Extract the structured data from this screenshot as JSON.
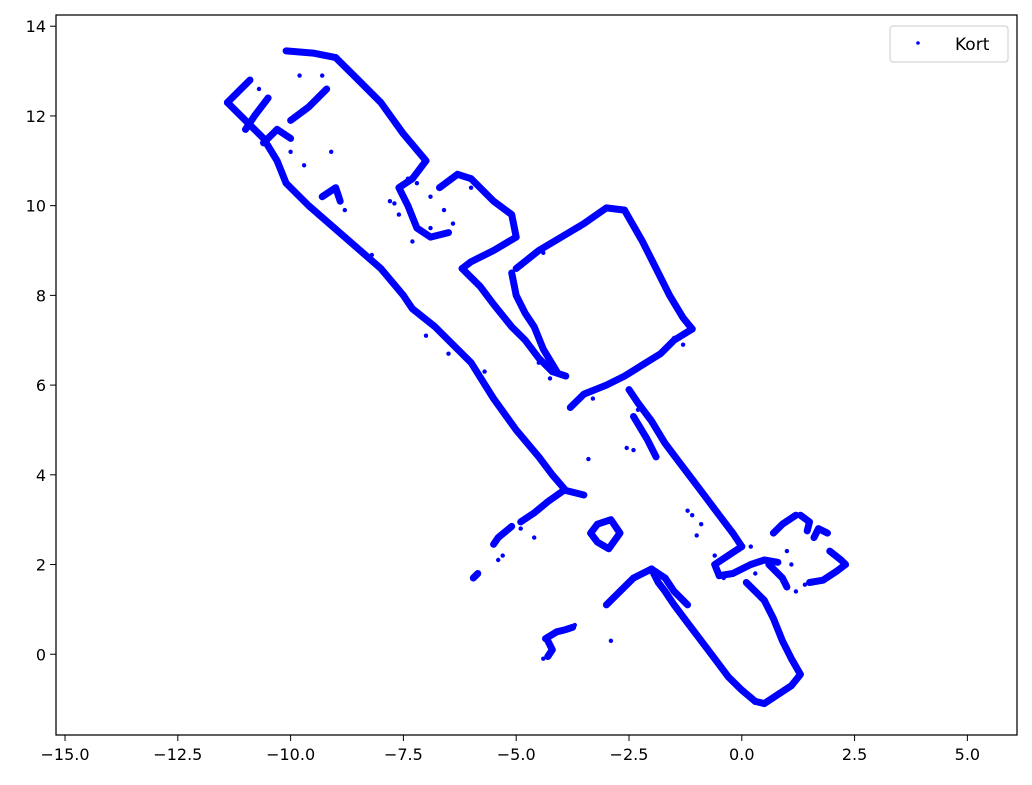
{
  "chart_data": {
    "type": "scatter",
    "title": "",
    "xlabel": "",
    "ylabel": "",
    "xlim": [
      -15.2,
      6.1
    ],
    "ylim": [
      -1.8,
      14.25
    ],
    "xticks": [
      -15.0,
      -12.5,
      -10.0,
      -7.5,
      -5.0,
      -2.5,
      0.0,
      2.5,
      5.0
    ],
    "xtick_labels": [
      "−15.0",
      "−12.5",
      "−10.0",
      "−7.5",
      "−5.0",
      "−2.5",
      "0.0",
      "2.5",
      "5.0"
    ],
    "yticks": [
      0,
      2,
      4,
      6,
      8,
      10,
      12,
      14
    ],
    "ytick_labels": [
      "0",
      "2",
      "4",
      "6",
      "8",
      "10",
      "12",
      "14"
    ],
    "grid": false,
    "legend": {
      "position": "top-right",
      "entries": [
        "Kort"
      ]
    },
    "series": [
      {
        "name": "Kort",
        "color": "#0000ff",
        "marker": "point",
        "polylines": [
          [
            [
              -11.4,
              12.3
            ],
            [
              -10.9,
              12.8
            ]
          ],
          [
            [
              -11.4,
              12.3
            ],
            [
              -10.6,
              11.5
            ],
            [
              -10.3,
              11.0
            ],
            [
              -10.1,
              10.5
            ],
            [
              -9.6,
              10.0
            ],
            [
              -8.8,
              9.3
            ],
            [
              -8.0,
              8.6
            ],
            [
              -7.5,
              8.0
            ],
            [
              -7.3,
              7.7
            ],
            [
              -6.8,
              7.3
            ],
            [
              -6.0,
              6.5
            ],
            [
              -5.5,
              5.7
            ],
            [
              -5.0,
              5.0
            ],
            [
              -4.5,
              4.4
            ],
            [
              -4.2,
              4.0
            ],
            [
              -3.9,
              3.65
            ],
            [
              -3.5,
              3.55
            ]
          ],
          [
            [
              -10.1,
              13.45
            ],
            [
              -9.5,
              13.4
            ],
            [
              -9.0,
              13.3
            ]
          ],
          [
            [
              -9.0,
              13.3
            ],
            [
              -8.5,
              12.8
            ],
            [
              -8.0,
              12.3
            ],
            [
              -7.5,
              11.6
            ],
            [
              -7.0,
              11.0
            ],
            [
              -7.3,
              10.6
            ],
            [
              -7.6,
              10.4
            ],
            [
              -7.4,
              10.0
            ],
            [
              -7.2,
              9.5
            ],
            [
              -6.9,
              9.3
            ],
            [
              -6.5,
              9.4
            ]
          ],
          [
            [
              -9.2,
              12.6
            ],
            [
              -9.6,
              12.2
            ],
            [
              -10.0,
              11.9
            ]
          ],
          [
            [
              -10.5,
              12.4
            ],
            [
              -10.8,
              12.0
            ],
            [
              -11.0,
              11.7
            ]
          ],
          [
            [
              -10.6,
              11.4
            ],
            [
              -10.3,
              11.7
            ],
            [
              -10.0,
              11.5
            ]
          ],
          [
            [
              -9.3,
              10.2
            ],
            [
              -9.0,
              10.4
            ],
            [
              -8.9,
              10.1
            ]
          ],
          [
            [
              -6.7,
              10.4
            ],
            [
              -6.3,
              10.7
            ],
            [
              -6.0,
              10.6
            ]
          ],
          [
            [
              -6.0,
              10.6
            ],
            [
              -5.5,
              10.1
            ],
            [
              -5.1,
              9.8
            ],
            [
              -5.0,
              9.3
            ],
            [
              -5.5,
              9.0
            ],
            [
              -6.0,
              8.75
            ],
            [
              -6.2,
              8.6
            ]
          ],
          [
            [
              -6.2,
              8.6
            ],
            [
              -5.8,
              8.2
            ],
            [
              -5.5,
              7.8
            ],
            [
              -5.1,
              7.3
            ],
            [
              -4.8,
              7.0
            ],
            [
              -4.5,
              6.6
            ],
            [
              -4.2,
              6.3
            ],
            [
              -3.9,
              6.2
            ]
          ],
          [
            [
              -5.0,
              8.6
            ],
            [
              -4.5,
              9.0
            ],
            [
              -4.0,
              9.3
            ],
            [
              -3.5,
              9.6
            ],
            [
              -3.0,
              9.95
            ],
            [
              -2.6,
              9.9
            ]
          ],
          [
            [
              -2.6,
              9.9
            ],
            [
              -2.2,
              9.2
            ],
            [
              -1.9,
              8.6
            ],
            [
              -1.6,
              8.0
            ],
            [
              -1.3,
              7.5
            ],
            [
              -1.1,
              7.25
            ]
          ],
          [
            [
              -1.1,
              7.25
            ],
            [
              -1.5,
              7.0
            ],
            [
              -1.8,
              6.7
            ],
            [
              -2.2,
              6.45
            ],
            [
              -2.6,
              6.2
            ],
            [
              -3.0,
              6.0
            ],
            [
              -3.5,
              5.8
            ],
            [
              -3.8,
              5.5
            ]
          ],
          [
            [
              -5.1,
              8.5
            ],
            [
              -5.0,
              8.0
            ],
            [
              -4.8,
              7.6
            ],
            [
              -4.6,
              7.3
            ],
            [
              -4.4,
              6.8
            ],
            [
              -4.1,
              6.3
            ]
          ],
          [
            [
              -2.5,
              5.9
            ],
            [
              -2.3,
              5.6
            ],
            [
              -2.0,
              5.2
            ],
            [
              -1.7,
              4.7
            ],
            [
              -1.4,
              4.3
            ],
            [
              -1.1,
              3.9
            ],
            [
              -0.8,
              3.5
            ],
            [
              -0.5,
              3.1
            ],
            [
              -0.2,
              2.7
            ],
            [
              0.0,
              2.4
            ]
          ],
          [
            [
              -2.4,
              5.3
            ],
            [
              -2.1,
              4.8
            ],
            [
              -1.9,
              4.4
            ]
          ],
          [
            [
              0.0,
              2.4
            ],
            [
              -0.3,
              2.2
            ],
            [
              -0.6,
              2.0
            ],
            [
              -0.5,
              1.75
            ],
            [
              -0.2,
              1.8
            ],
            [
              0.2,
              2.0
            ],
            [
              0.5,
              2.1
            ],
            [
              0.8,
              2.05
            ]
          ],
          [
            [
              0.6,
              2.0
            ],
            [
              0.9,
              1.7
            ],
            [
              1.0,
              1.5
            ]
          ],
          [
            [
              0.1,
              1.6
            ],
            [
              0.3,
              1.4
            ],
            [
              0.5,
              1.2
            ]
          ],
          [
            [
              0.5,
              1.2
            ],
            [
              0.7,
              0.8
            ],
            [
              0.9,
              0.3
            ],
            [
              1.1,
              -0.1
            ],
            [
              1.3,
              -0.45
            ],
            [
              1.1,
              -0.7
            ],
            [
              0.8,
              -0.9
            ],
            [
              0.5,
              -1.1
            ],
            [
              0.3,
              -1.05
            ]
          ],
          [
            [
              0.3,
              -1.05
            ],
            [
              0.0,
              -0.8
            ],
            [
              -0.3,
              -0.5
            ],
            [
              -0.6,
              -0.1
            ],
            [
              -0.9,
              0.3
            ],
            [
              -1.2,
              0.7
            ],
            [
              -1.5,
              1.1
            ],
            [
              -1.7,
              1.4
            ],
            [
              -1.85,
              1.6
            ],
            [
              -2.0,
              1.9
            ]
          ],
          [
            [
              -2.0,
              1.9
            ],
            [
              -2.4,
              1.7
            ],
            [
              -2.7,
              1.4
            ],
            [
              -3.0,
              1.1
            ]
          ],
          [
            [
              -2.0,
              1.9
            ],
            [
              -1.7,
              1.7
            ],
            [
              -1.5,
              1.4
            ],
            [
              -1.2,
              1.1
            ]
          ],
          [
            [
              -3.2,
              2.9
            ],
            [
              -2.9,
              3.0
            ],
            [
              -2.7,
              2.7
            ],
            [
              -2.95,
              2.35
            ],
            [
              -3.2,
              2.5
            ],
            [
              -3.35,
              2.7
            ],
            [
              -3.2,
              2.9
            ]
          ],
          [
            [
              -3.95,
              3.65
            ],
            [
              -4.3,
              3.4
            ],
            [
              -4.6,
              3.15
            ],
            [
              -4.9,
              2.95
            ]
          ],
          [
            [
              -5.1,
              2.85
            ],
            [
              -5.4,
              2.6
            ],
            [
              -5.5,
              2.45
            ]
          ],
          [
            [
              1.2,
              3.1
            ],
            [
              0.9,
              2.9
            ],
            [
              0.7,
              2.7
            ]
          ],
          [
            [
              1.3,
              3.1
            ],
            [
              1.5,
              2.95
            ],
            [
              1.45,
              2.75
            ]
          ],
          [
            [
              1.95,
              2.3
            ],
            [
              2.2,
              2.1
            ],
            [
              2.3,
              2.0
            ],
            [
              2.1,
              1.85
            ],
            [
              1.8,
              1.65
            ],
            [
              1.5,
              1.6
            ]
          ],
          [
            [
              1.6,
              2.6
            ],
            [
              1.7,
              2.8
            ],
            [
              1.9,
              2.7
            ]
          ],
          [
            [
              -4.35,
              0.35
            ],
            [
              -4.1,
              0.5
            ],
            [
              -3.9,
              0.55
            ],
            [
              -3.75,
              0.6
            ]
          ],
          [
            [
              -4.3,
              0.3
            ],
            [
              -4.2,
              0.1
            ],
            [
              -4.3,
              -0.05
            ]
          ],
          [
            [
              -5.85,
              1.8
            ],
            [
              -5.95,
              1.7
            ]
          ]
        ],
        "points": [
          [
            -7.8,
            10.1
          ],
          [
            -7.6,
            9.8
          ],
          [
            -7.3,
            9.2
          ],
          [
            -6.9,
            10.2
          ],
          [
            -6.6,
            9.9
          ],
          [
            -6.4,
            9.6
          ],
          [
            -6.0,
            10.4
          ],
          [
            -7.7,
            10.05
          ],
          [
            -7.4,
            10.6
          ],
          [
            -9.8,
            12.9
          ],
          [
            -9.3,
            12.9
          ],
          [
            -10.0,
            11.2
          ],
          [
            -9.7,
            10.9
          ],
          [
            -8.2,
            8.9
          ],
          [
            -7.0,
            7.1
          ],
          [
            -6.5,
            6.7
          ],
          [
            -5.7,
            6.3
          ],
          [
            -3.4,
            4.35
          ],
          [
            -2.4,
            4.55
          ],
          [
            -2.55,
            4.6
          ],
          [
            -0.9,
            2.9
          ],
          [
            -1.1,
            3.1
          ],
          [
            -1.2,
            3.2
          ],
          [
            0.2,
            2.4
          ],
          [
            0.3,
            1.8
          ],
          [
            -0.4,
            1.7
          ],
          [
            1.2,
            1.4
          ],
          [
            1.4,
            1.55
          ],
          [
            -2.9,
            0.3
          ],
          [
            -5.3,
            2.2
          ],
          [
            -5.4,
            2.1
          ],
          [
            -4.9,
            2.8
          ],
          [
            -4.6,
            2.6
          ],
          [
            -3.7,
            0.65
          ],
          [
            -4.4,
            -0.1
          ],
          [
            -0.6,
            2.2
          ],
          [
            -1.0,
            2.65
          ],
          [
            1.0,
            2.3
          ],
          [
            1.1,
            2.0
          ],
          [
            -2.3,
            5.45
          ],
          [
            -4.4,
            8.95
          ],
          [
            -3.6,
            9.5
          ],
          [
            -1.5,
            7.05
          ],
          [
            -1.3,
            6.9
          ],
          [
            -4.5,
            6.5
          ],
          [
            -4.25,
            6.15
          ],
          [
            -2.8,
            6.1
          ],
          [
            -3.3,
            5.7
          ],
          [
            -6.9,
            9.5
          ],
          [
            -7.2,
            10.5
          ],
          [
            -9.1,
            11.2
          ],
          [
            -10.7,
            12.6
          ],
          [
            -9.0,
            10.3
          ],
          [
            -8.8,
            9.9
          ]
        ]
      }
    ]
  }
}
